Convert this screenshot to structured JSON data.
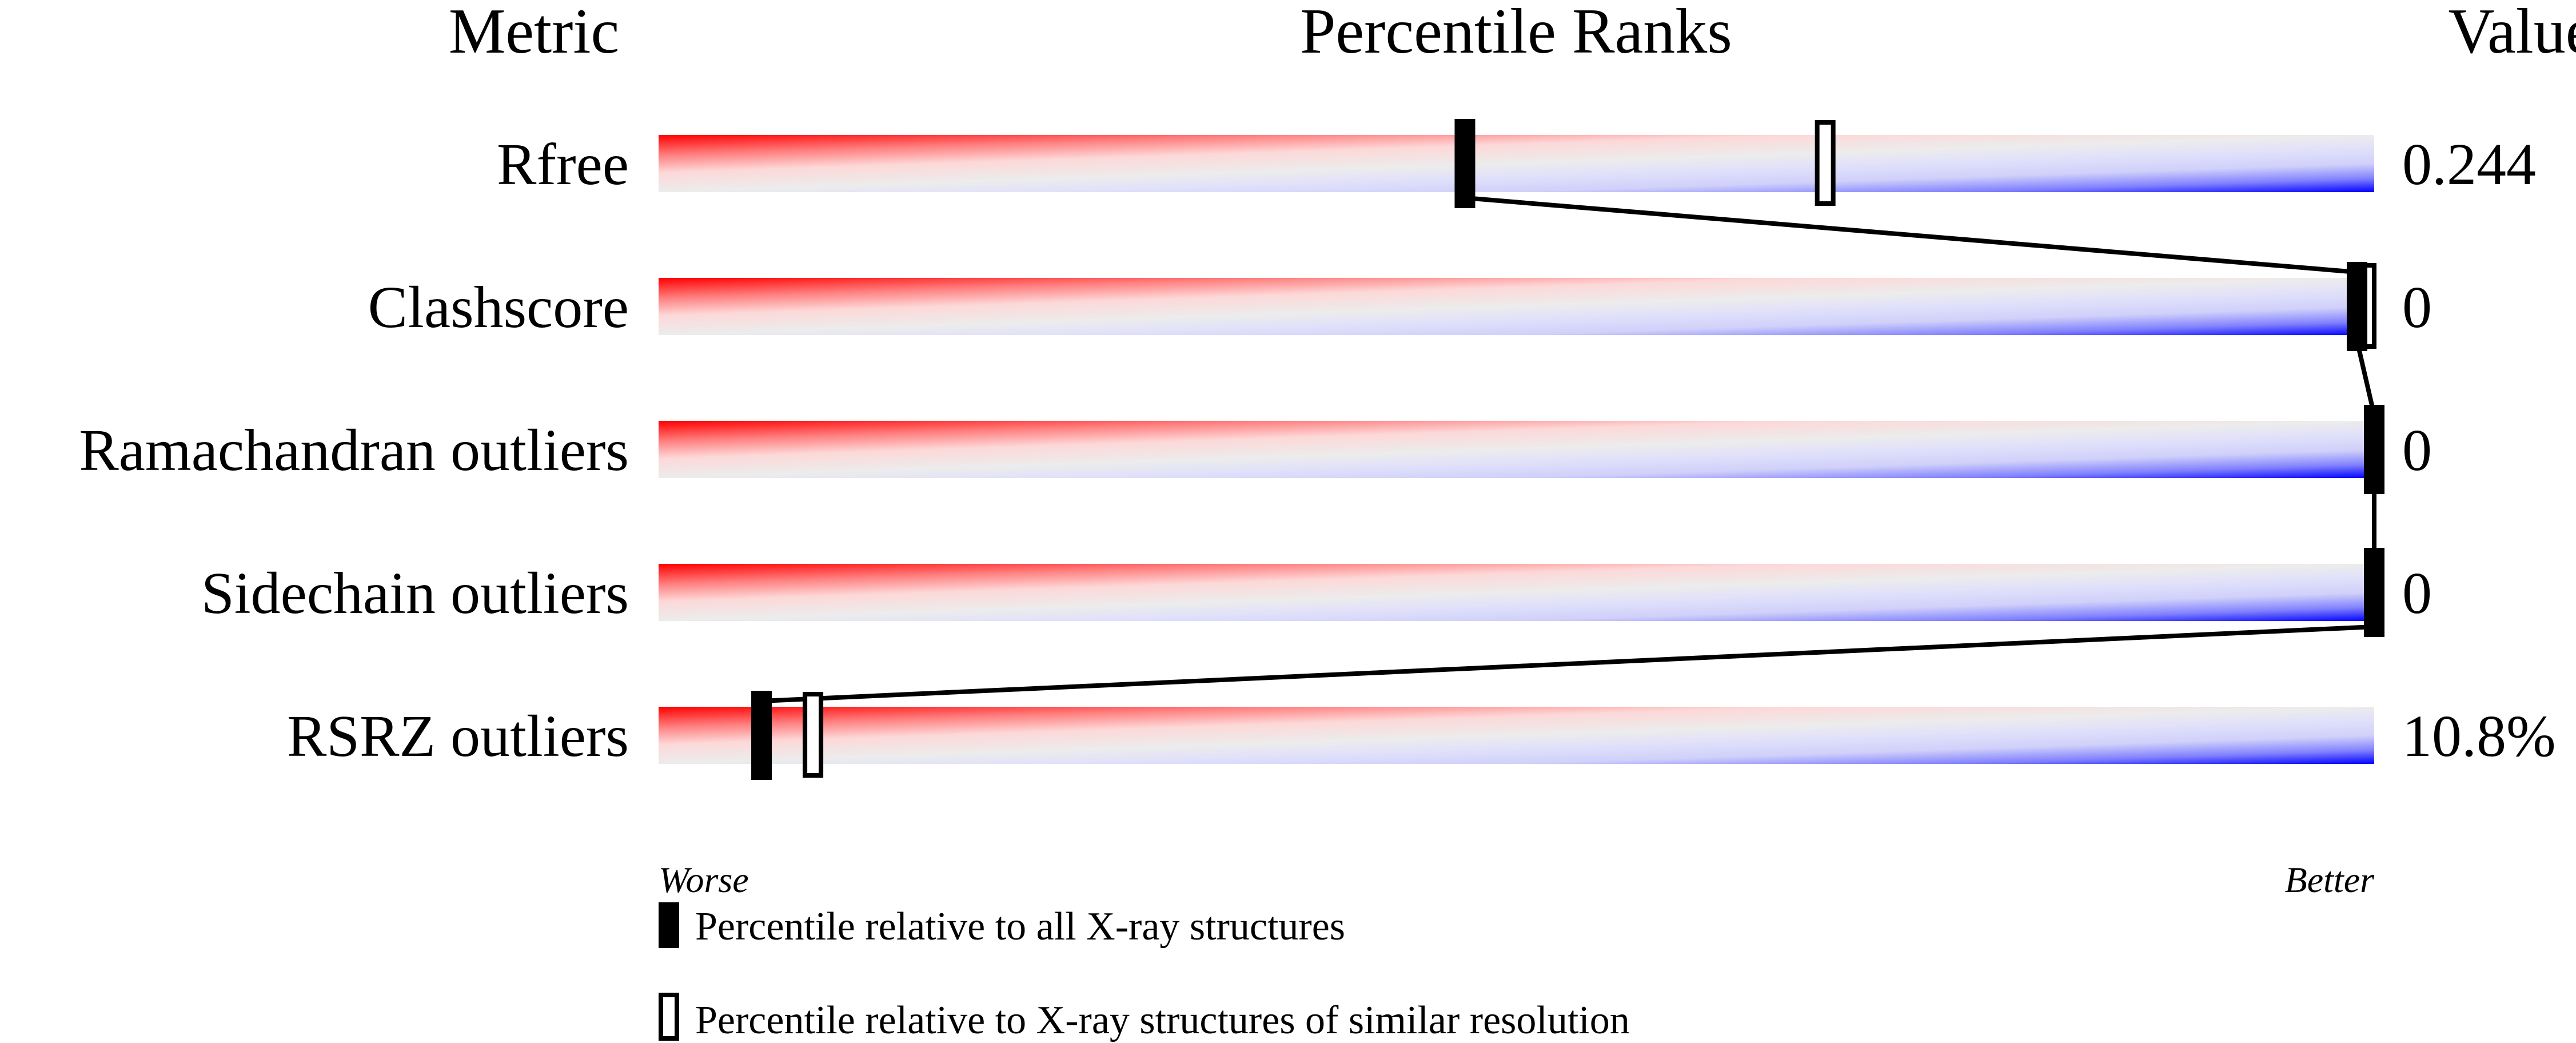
{
  "chart_data": {
    "type": "percentile-slider",
    "headers": {
      "metric": "Metric",
      "ranks": "Percentile Ranks",
      "value": "Value"
    },
    "xlim": [
      0,
      100
    ],
    "axis_labels": {
      "left": "Worse",
      "right": "Better"
    },
    "gradient_colors": [
      "#ff0000",
      "#ececec",
      "#0000ff"
    ],
    "metrics": [
      {
        "name": "Rfree",
        "value": "0.244",
        "percentile_all": 47,
        "percentile_similar": 68
      },
      {
        "name": "Clashscore",
        "value": "0",
        "percentile_all": 99,
        "percentile_similar": 100
      },
      {
        "name": "Ramachandran outliers",
        "value": "0",
        "percentile_all": 100,
        "percentile_similar": null
      },
      {
        "name": "Sidechain outliers",
        "value": "0",
        "percentile_all": 100,
        "percentile_similar": null
      },
      {
        "name": "RSRZ outliers",
        "value": "10.8%",
        "percentile_all": 6,
        "percentile_similar": 9
      }
    ],
    "legend": [
      {
        "marker": "filled",
        "label": "Percentile relative to all X-ray structures"
      },
      {
        "marker": "open",
        "label": "Percentile relative to X-ray structures of similar resolution"
      }
    ]
  }
}
